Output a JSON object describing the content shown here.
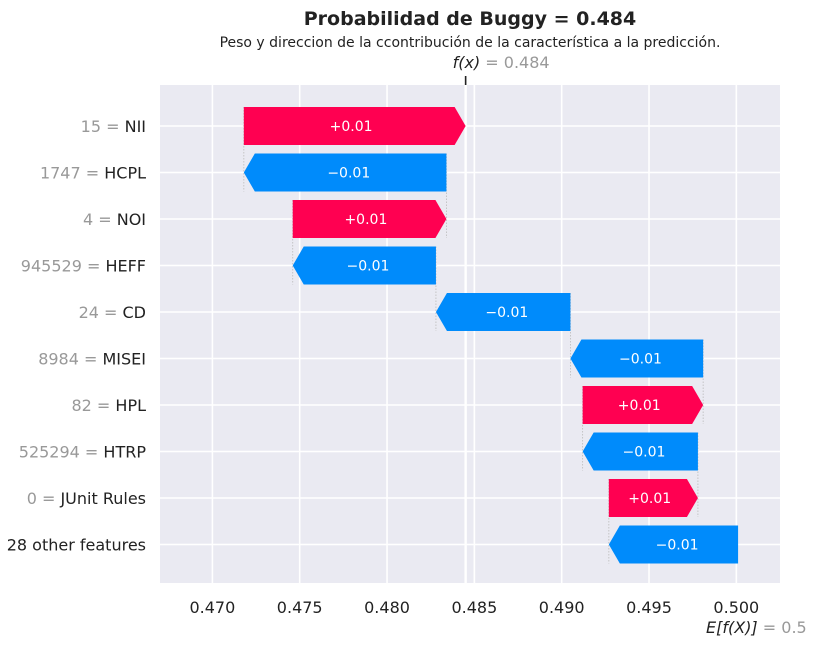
{
  "chart_data": {
    "type": "bar",
    "subtype": "waterfall",
    "title": "Probabilidad de Buggy = 0.484",
    "subtitle": "Peso y direccion de la ccontribución de la característica a la predicción.",
    "fx_label": "f(x)",
    "fx_value": "= 0.484",
    "base_label": "E[f(X)]",
    "base_value": "= 0.5",
    "fx": 0.4845,
    "base": 0.5,
    "xlim": [
      0.467,
      0.5025
    ],
    "xticks": [
      0.47,
      0.475,
      0.48,
      0.485,
      0.49,
      0.495,
      0.5
    ],
    "xtick_labels": [
      "0.470",
      "0.475",
      "0.480",
      "0.485",
      "0.490",
      "0.495",
      "0.500"
    ],
    "grid": true,
    "colors": {
      "positive": "#ff0051",
      "negative": "#008bfb",
      "background": "#eaeaf2",
      "grid": "#ffffff",
      "value_gray": "#999999",
      "text": "#222222"
    },
    "rows": [
      {
        "value": "15",
        "feature": "NII",
        "label": "+0.01",
        "start": 0.4718,
        "end": 0.4845
      },
      {
        "value": "1747",
        "feature": "HCPL",
        "label": "−0.01",
        "start": 0.4834,
        "end": 0.4718
      },
      {
        "value": "4",
        "feature": "NOI",
        "label": "+0.01",
        "start": 0.4746,
        "end": 0.4834
      },
      {
        "value": "945529",
        "feature": "HEFF",
        "label": "−0.01",
        "start": 0.4828,
        "end": 0.4746
      },
      {
        "value": "24",
        "feature": "CD",
        "label": "−0.01",
        "start": 0.4905,
        "end": 0.4828
      },
      {
        "value": "8984",
        "feature": "MISEI",
        "label": "−0.01",
        "start": 0.4981,
        "end": 0.4905
      },
      {
        "value": "82",
        "feature": "HPL",
        "label": "+0.01",
        "start": 0.4912,
        "end": 0.4981
      },
      {
        "value": "525294",
        "feature": "HTRP",
        "label": "−0.01",
        "start": 0.4978,
        "end": 0.4912
      },
      {
        "value": "0",
        "feature": "JUnit Rules",
        "label": "+0.01",
        "start": 0.4927,
        "end": 0.4978
      },
      {
        "value": "",
        "feature": "28 other features",
        "label": "−0.01",
        "start": 0.5001,
        "end": 0.4927
      }
    ]
  }
}
